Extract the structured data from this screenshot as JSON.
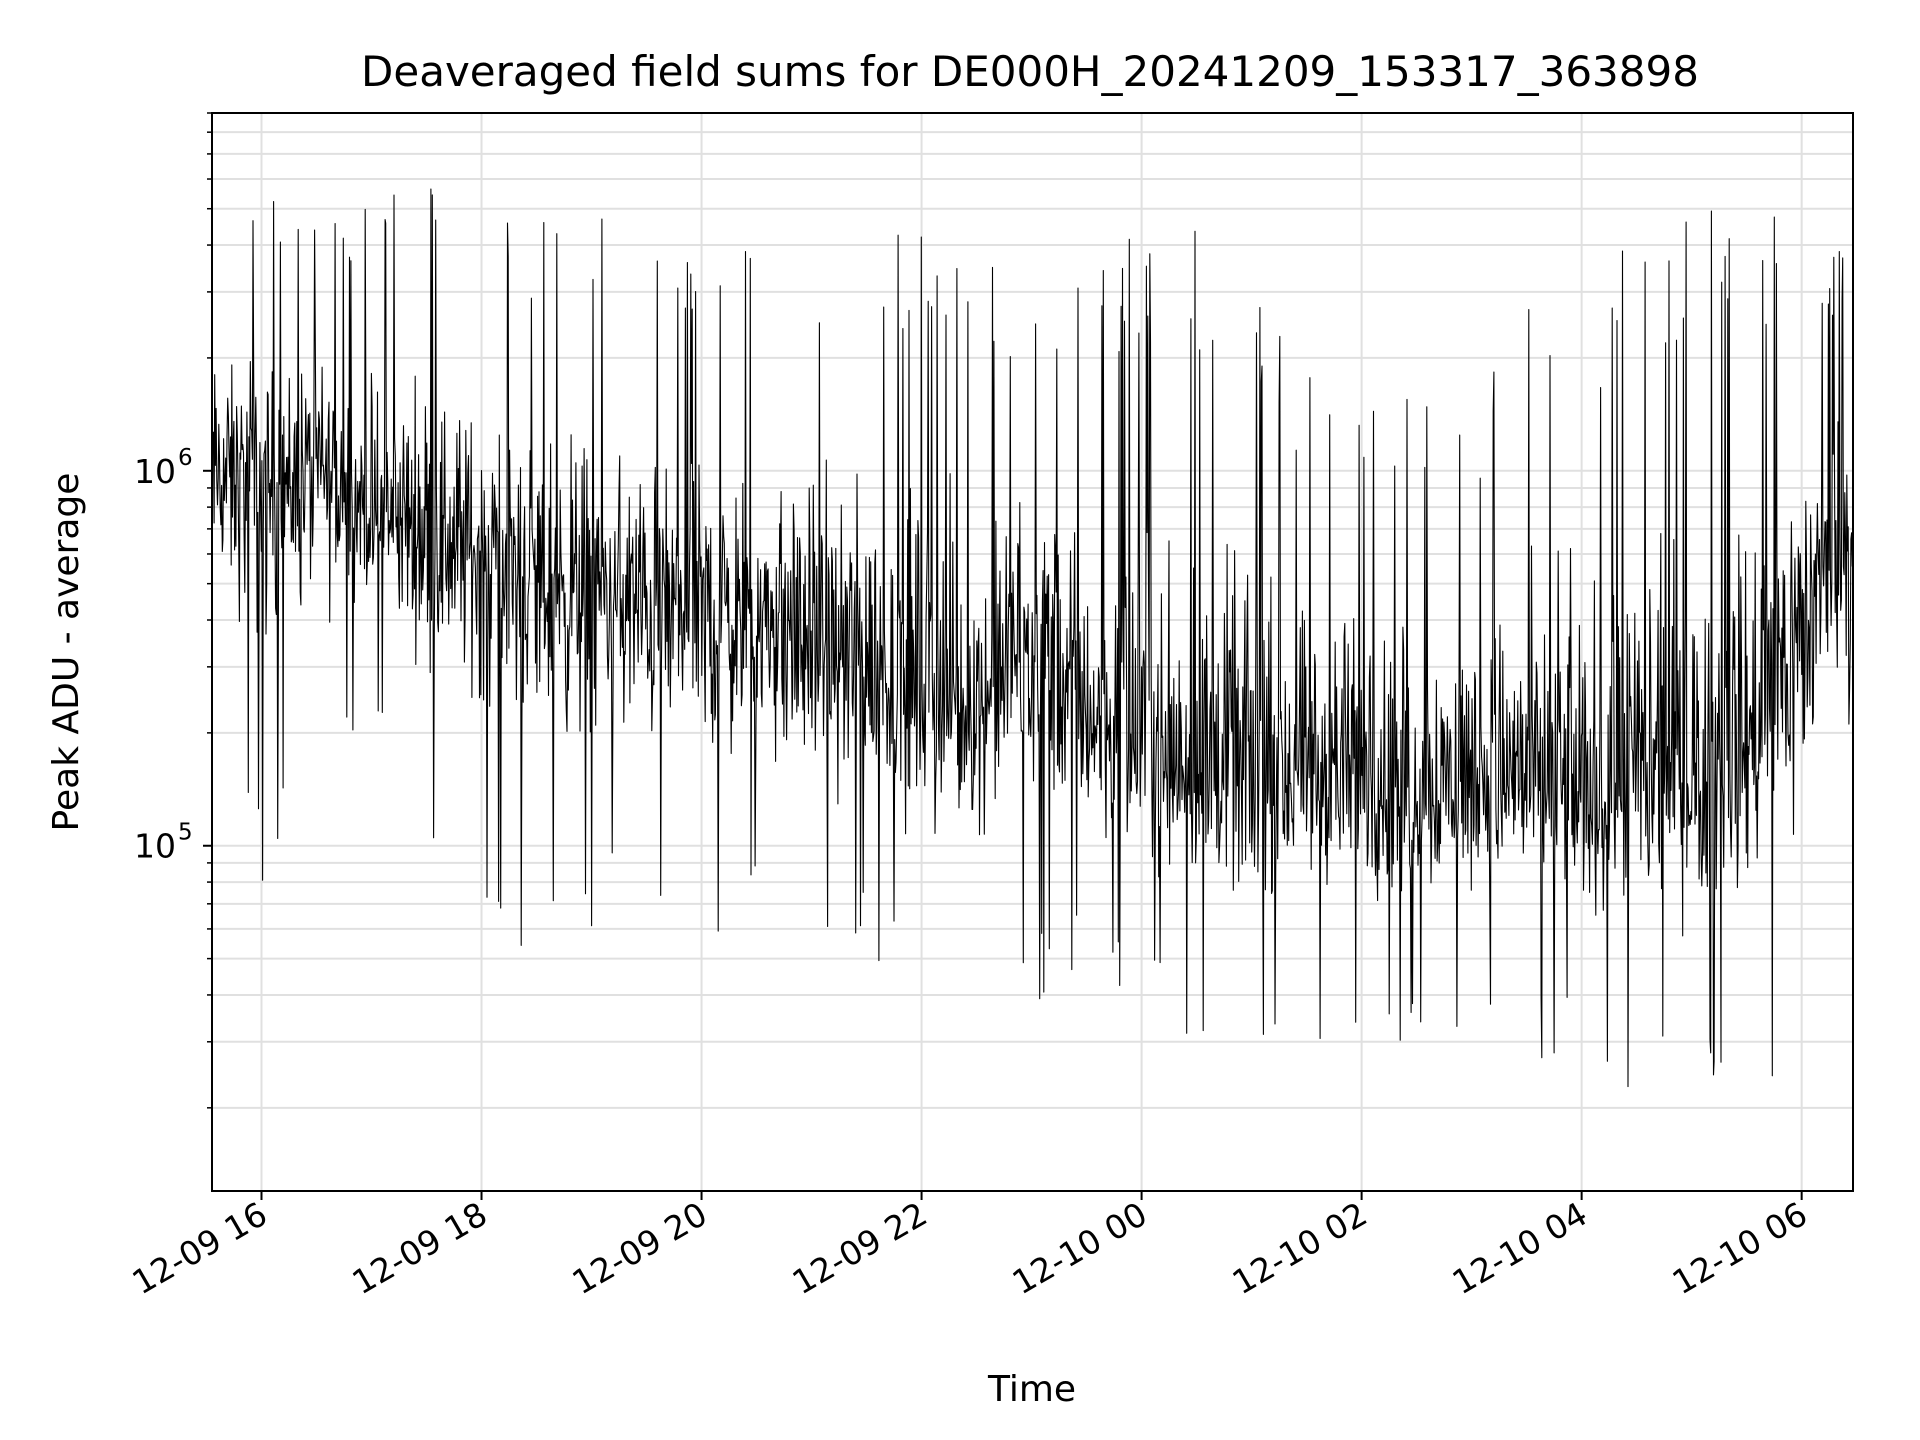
{
  "chart_data": {
    "type": "line",
    "title": "Deaveraged field sums for DE000H_20241209_153317_363898",
    "xlabel": "Time",
    "ylabel": "Peak ADU - average",
    "yscale": "log",
    "ylim": [
      12000,
      9000000
    ],
    "xlim": [
      "2024-12-09 15:33",
      "2024-12-10 06:28"
    ],
    "grid": true,
    "line_color": "#000000",
    "grid_color": "#e0e0e0",
    "x_ticks": [
      {
        "value": "2024-12-09 16:00",
        "label": "12-09 16"
      },
      {
        "value": "2024-12-09 18:00",
        "label": "12-09 18"
      },
      {
        "value": "2024-12-09 20:00",
        "label": "12-09 20"
      },
      {
        "value": "2024-12-09 22:00",
        "label": "12-09 22"
      },
      {
        "value": "2024-12-10 00:00",
        "label": "12-10 00"
      },
      {
        "value": "2024-12-10 02:00",
        "label": "12-10 02"
      },
      {
        "value": "2024-12-10 04:00",
        "label": "12-10 04"
      },
      {
        "value": "2024-12-10 06:00",
        "label": "12-10 06"
      }
    ],
    "y_ticks": [
      {
        "value": 100000,
        "base": "10",
        "exp": "5"
      },
      {
        "value": 1000000,
        "base": "10",
        "exp": "6"
      }
    ],
    "series": [
      {
        "x": [
          "2024-12-09 15:33",
          "2024-12-09 16:00",
          "2024-12-09 16:30",
          "2024-12-09 17:00",
          "2024-12-09 17:30",
          "2024-12-09 18:00",
          "2024-12-09 18:30",
          "2024-12-09 19:00",
          "2024-12-09 19:30",
          "2024-12-09 20:00",
          "2024-12-09 20:30",
          "2024-12-09 21:00",
          "2024-12-09 21:30",
          "2024-12-09 22:00",
          "2024-12-09 22:30",
          "2024-12-09 23:00",
          "2024-12-09 23:30",
          "2024-12-10 00:00",
          "2024-12-10 00:30",
          "2024-12-10 01:00",
          "2024-12-10 01:30",
          "2024-12-10 02:00",
          "2024-12-10 02:30",
          "2024-12-10 03:00",
          "2024-12-10 03:30",
          "2024-12-10 04:00",
          "2024-12-10 04:30",
          "2024-12-10 05:00",
          "2024-12-10 05:30",
          "2024-12-10 06:00",
          "2024-12-10 06:28"
        ],
        "y_median": [
          1000000,
          900000,
          1000000,
          750000,
          700000,
          600000,
          500000,
          450000,
          420000,
          400000,
          380000,
          350000,
          300000,
          250000,
          220000,
          350000,
          220000,
          180000,
          160000,
          150000,
          150000,
          150000,
          140000,
          150000,
          150000,
          130000,
          140000,
          150000,
          180000,
          400000,
          700000
        ],
        "y_max": [
          5000000,
          5500000,
          6000000,
          5500000,
          6500000,
          5000000,
          4800000,
          6000000,
          4000000,
          4200000,
          4000000,
          3800000,
          3700000,
          5500000,
          3800000,
          3500000,
          3000000,
          4800000,
          4500000,
          3200000,
          1800000,
          1900000,
          1700000,
          1600000,
          2800000,
          3500000,
          4500000,
          4800000,
          5500000,
          4200000,
          4300000
        ],
        "y_min": [
          180000,
          80000,
          110000,
          240000,
          100000,
          65000,
          50000,
          60000,
          55000,
          50000,
          55000,
          50000,
          50000,
          35000,
          45000,
          35000,
          45000,
          40000,
          30000,
          25000,
          30000,
          28000,
          30000,
          30000,
          25000,
          28000,
          20000,
          22000,
          25000,
          15000,
          50000
        ]
      }
    ]
  }
}
